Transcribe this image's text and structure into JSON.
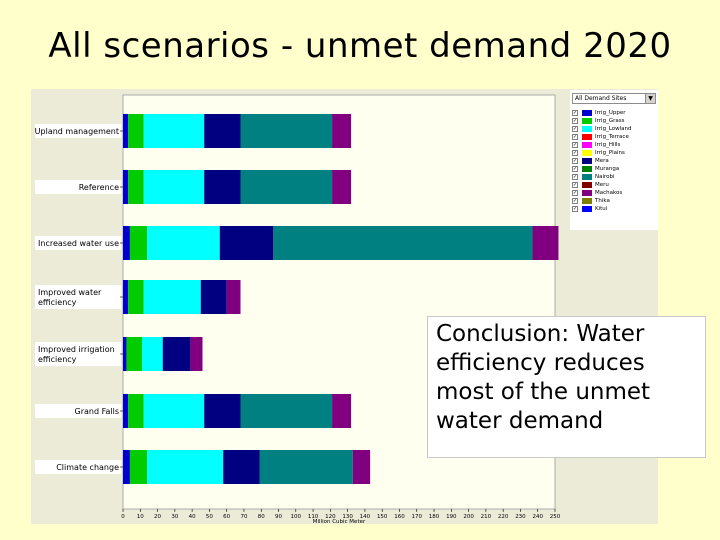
{
  "title": "All scenarios - unmet demand 2020",
  "conclusion": "Conclusion: Water efficiency reduces most of the unmet water demand",
  "legend": {
    "dropdown_label": "All Demand Sites",
    "dropdown_arrow": "▼",
    "check_mark": "✓",
    "items": [
      {
        "label": "Irrig_Upper",
        "color": "#0000cc"
      },
      {
        "label": "Irrig_Grass",
        "color": "#00cc00"
      },
      {
        "label": "Irrig_Lowland",
        "color": "#00ffff"
      },
      {
        "label": "Irrig_Terrace",
        "color": "#ff0000"
      },
      {
        "label": "Irrig_Hills",
        "color": "#ff00ff"
      },
      {
        "label": "Irrig_Plains",
        "color": "#ffff00"
      },
      {
        "label": "Mera",
        "color": "#000080"
      },
      {
        "label": "Muranga",
        "color": "#008000"
      },
      {
        "label": "Nairobi",
        "color": "#008080"
      },
      {
        "label": "Meru",
        "color": "#800000"
      },
      {
        "label": "Machakos",
        "color": "#800080"
      },
      {
        "label": "Thika",
        "color": "#808000"
      },
      {
        "label": "Kitui",
        "color": "#0000ff"
      }
    ]
  },
  "chart_data": {
    "type": "bar",
    "orientation": "horizontal",
    "stacked": true,
    "xlabel": "Million Cubic Meter",
    "xlim": [
      0,
      250
    ],
    "xticks": [
      0,
      10,
      20,
      30,
      40,
      50,
      60,
      70,
      80,
      90,
      100,
      110,
      120,
      130,
      140,
      150,
      160,
      170,
      180,
      190,
      200,
      210,
      220,
      230,
      240,
      250
    ],
    "grid": false,
    "legend_position": "top-right",
    "categories": [
      "Upland management",
      "Reference",
      "Increased water use",
      "Improved water efficiency",
      "Improved irrigation efficiency",
      "Grand Falls",
      "Climate change"
    ],
    "series": [
      {
        "name": "Irrig_Upper",
        "color": "#0000cc",
        "values": [
          3,
          3,
          4,
          3,
          2,
          3,
          4
        ]
      },
      {
        "name": "Irrig_Grass",
        "color": "#00cc00",
        "values": [
          9,
          9,
          10,
          9,
          9,
          9,
          10
        ]
      },
      {
        "name": "Irrig_Lowland",
        "color": "#00ffff",
        "values": [
          35,
          35,
          42,
          33,
          12,
          35,
          44
        ]
      },
      {
        "name": "Mera",
        "color": "#000080",
        "values": [
          21,
          21,
          31,
          15,
          16,
          21,
          21
        ]
      },
      {
        "name": "Nairobi",
        "color": "#008080",
        "values": [
          53,
          53,
          150,
          0,
          0,
          53,
          54
        ]
      },
      {
        "name": "Machakos",
        "color": "#800080",
        "values": [
          11,
          11,
          15,
          8,
          7,
          11,
          10
        ]
      }
    ]
  }
}
